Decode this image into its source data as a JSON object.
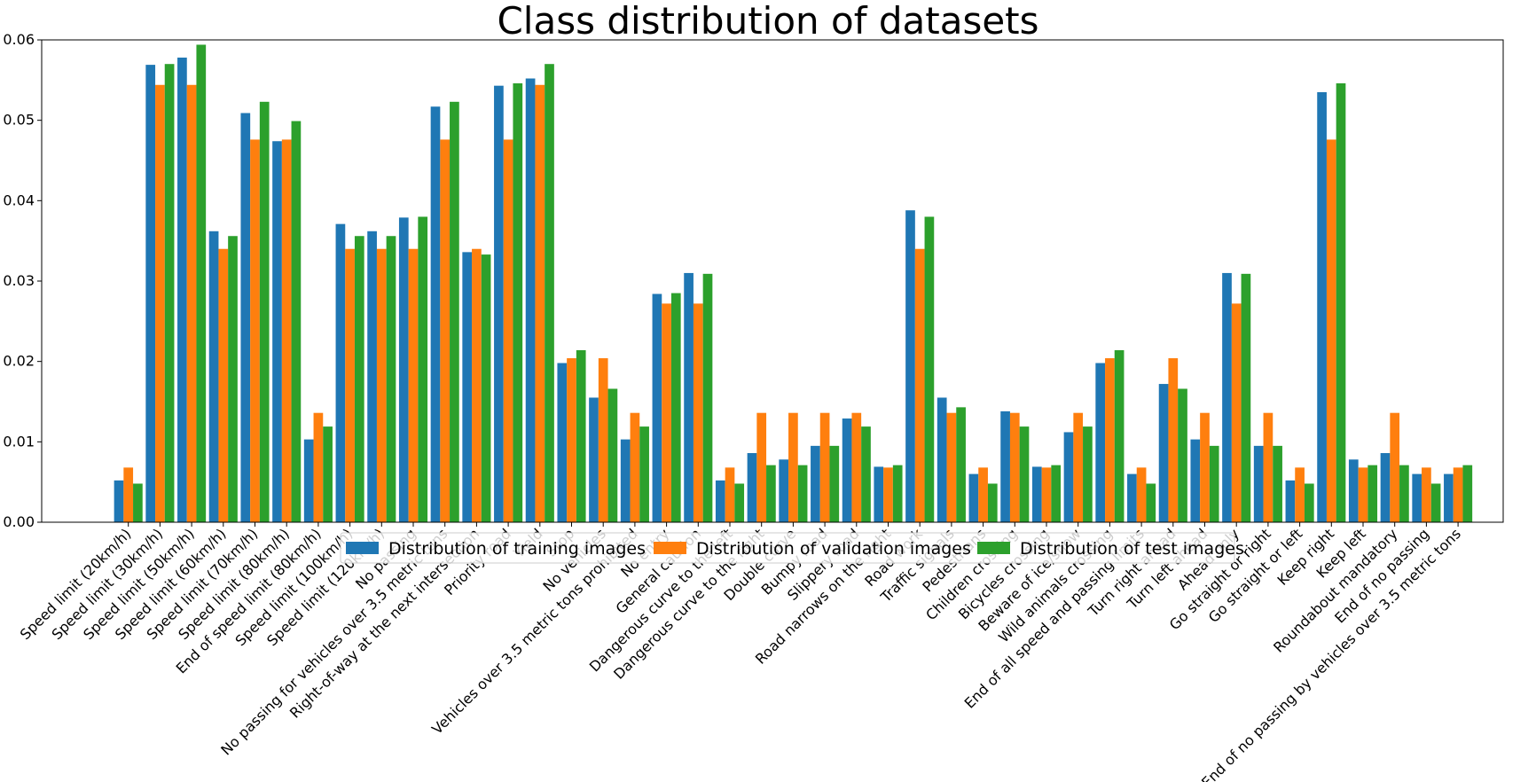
{
  "chart_data": {
    "type": "bar",
    "title": "Class distribution of datasets",
    "xlabel": "",
    "ylabel": "",
    "ylim": [
      0,
      0.06
    ],
    "yticks": [
      "0.00",
      "0.01",
      "0.02",
      "0.03",
      "0.04",
      "0.05",
      "0.06"
    ],
    "grid": false,
    "legend_position": "center (overlapping x tick labels)",
    "categories": [
      "Speed limit (20km/h)",
      "Speed limit (30km/h)",
      "Speed limit (50km/h)",
      "Speed limit (60km/h)",
      "Speed limit (70km/h)",
      "Speed limit (80km/h)",
      "End of speed limit (80km/h)",
      "Speed limit (100km/h)",
      "Speed limit (120km/h)",
      "No passing",
      "No passing for vehicles over 3.5 metric tons",
      "Right-of-way at the next intersection",
      "Priority road",
      "Yield",
      "Stop",
      "No vehicles",
      "Vehicles over 3.5 metric tons prohibited",
      "No entry",
      "General caution",
      "Dangerous curve to the left",
      "Dangerous curve to the right",
      "Double curve",
      "Bumpy road",
      "Slippery road",
      "Road narrows on the right",
      "Road work",
      "Traffic signals",
      "Pedestrians",
      "Children crossing",
      "Bicycles crossing",
      "Beware of ice/snow",
      "Wild animals crossing",
      "End of all speed and passing limits",
      "Turn right ahead",
      "Turn left ahead",
      "Ahead only",
      "Go straight or right",
      "Go straight or left",
      "Keep right",
      "Keep left",
      "Roundabout mandatory",
      "End of no passing",
      "End of no passing by vehicles over 3.5 metric tons"
    ],
    "series": [
      {
        "name": "Distribution of training images",
        "color": "#1f77b4",
        "values": [
          0.0052,
          0.0569,
          0.0578,
          0.0362,
          0.0509,
          0.0474,
          0.0103,
          0.0371,
          0.0362,
          0.0379,
          0.0517,
          0.0336,
          0.0543,
          0.0552,
          0.0198,
          0.0155,
          0.0103,
          0.0284,
          0.031,
          0.0052,
          0.0086,
          0.0078,
          0.0095,
          0.0129,
          0.0069,
          0.0388,
          0.0155,
          0.006,
          0.0138,
          0.0069,
          0.0112,
          0.0198,
          0.006,
          0.0172,
          0.0103,
          0.031,
          0.0095,
          0.0052,
          0.0535,
          0.0078,
          0.0086,
          0.006,
          0.006
        ]
      },
      {
        "name": "Distribution of validation images",
        "color": "#ff7f0e",
        "values": [
          0.0068,
          0.0544,
          0.0544,
          0.034,
          0.0476,
          0.0476,
          0.0136,
          0.034,
          0.034,
          0.034,
          0.0476,
          0.034,
          0.0476,
          0.0544,
          0.0204,
          0.0204,
          0.0136,
          0.0272,
          0.0272,
          0.0068,
          0.0136,
          0.0136,
          0.0136,
          0.0136,
          0.0068,
          0.034,
          0.0136,
          0.0068,
          0.0136,
          0.0068,
          0.0136,
          0.0204,
          0.0068,
          0.0204,
          0.0136,
          0.0272,
          0.0136,
          0.0068,
          0.0476,
          0.0068,
          0.0136,
          0.0068,
          0.0068
        ]
      },
      {
        "name": "Distribution of test images",
        "color": "#2ca02c",
        "values": [
          0.0048,
          0.057,
          0.0594,
          0.0356,
          0.0523,
          0.0499,
          0.0119,
          0.0356,
          0.0356,
          0.038,
          0.0523,
          0.0333,
          0.0546,
          0.057,
          0.0214,
          0.0166,
          0.0119,
          0.0285,
          0.0309,
          0.0048,
          0.0071,
          0.0071,
          0.0095,
          0.0119,
          0.0071,
          0.038,
          0.0143,
          0.0048,
          0.0119,
          0.0071,
          0.0119,
          0.0214,
          0.0048,
          0.0166,
          0.0095,
          0.0309,
          0.0095,
          0.0048,
          0.0546,
          0.0071,
          0.0071,
          0.0048,
          0.0071
        ]
      }
    ]
  }
}
